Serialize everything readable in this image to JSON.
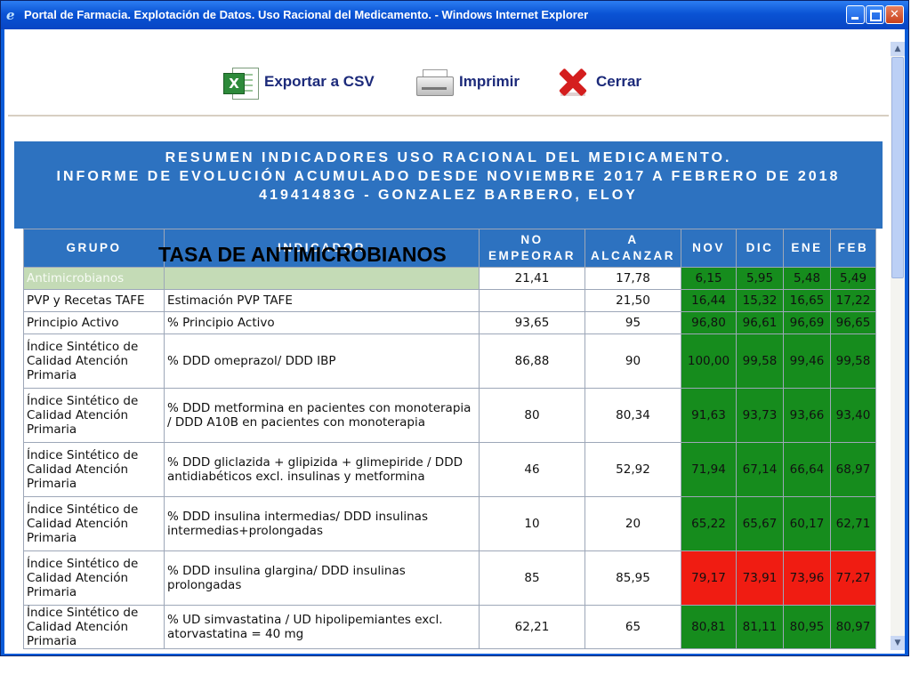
{
  "window": {
    "title": "Portal de Farmacia. Explotación de Datos. Uso Racional del Medicamento. - Windows Internet Explorer",
    "app_icon": "ie-icon"
  },
  "toolbar": {
    "export_label": "Exportar a CSV",
    "export_icon": "excel-icon",
    "print_label": "Imprimir",
    "print_icon": "printer-icon",
    "close_label": "Cerrar",
    "close_icon": "close-x-icon"
  },
  "report": {
    "line1": "RESUMEN INDICADORES USO RACIONAL DEL MEDICAMENTO.",
    "line2": "INFORME DE EVOLUCIÓN ACUMULADO DESDE NOVIEMBRE 2017 A FEBRERO DE 2018",
    "line3": "41941483G - GONZALEZ BARBERO, ELOY"
  },
  "overlay_caption": "TASA DE ANTIMICROBIANOS",
  "table": {
    "headers": {
      "grupo": "GRUPO",
      "indicador": "INDICADOR",
      "no_empeorar": "NO EMPEORAR",
      "a_alcanzar": "A ALCANZAR",
      "nov": "NOV",
      "dic": "DIC",
      "ene": "ENE",
      "feb": "FEB"
    },
    "rows": [
      {
        "grupo": "Antimicrobianos",
        "indicador": "",
        "no_empeorar": "21,41",
        "a_alcanzar": "17,78",
        "nov": "6,15",
        "dic": "5,95",
        "ene": "5,48",
        "feb": "5,49"
      },
      {
        "grupo": "PVP y Recetas TAFE",
        "indicador": "Estimación PVP TAFE",
        "no_empeorar": "",
        "a_alcanzar": "21,50",
        "nov": "16,44",
        "dic": "15,32",
        "ene": "16,65",
        "feb": "17,22"
      },
      {
        "grupo": "Principio Activo",
        "indicador": "% Principio Activo",
        "no_empeorar": "93,65",
        "a_alcanzar": "95",
        "nov": "96,80",
        "dic": "96,61",
        "ene": "96,69",
        "feb": "96,65"
      },
      {
        "grupo": "Índice Sintético de Calidad Atención Primaria",
        "indicador": "% DDD omeprazol/ DDD IBP",
        "no_empeorar": "86,88",
        "a_alcanzar": "90",
        "nov": "100,00",
        "dic": "99,58",
        "ene": "99,46",
        "feb": "99,58"
      },
      {
        "grupo": "Índice Sintético de Calidad Atención Primaria",
        "indicador": "% DDD metformina en pacientes con monoterapia / DDD A10B en pacientes con monoterapia",
        "no_empeorar": "80",
        "a_alcanzar": "80,34",
        "nov": "91,63",
        "dic": "93,73",
        "ene": "93,66",
        "feb": "93,40"
      },
      {
        "grupo": "Índice Sintético de Calidad Atención Primaria",
        "indicador": "% DDD gliclazida + glipizida + glimepiride / DDD antidiabéticos excl. insulinas y metformina",
        "no_empeorar": "46",
        "a_alcanzar": "52,92",
        "nov": "71,94",
        "dic": "67,14",
        "ene": "66,64",
        "feb": "68,97"
      },
      {
        "grupo": "Índice Sintético de Calidad Atención Primaria",
        "indicador": "% DDD insulina intermedias/ DDD insulinas intermedias+prolongadas",
        "no_empeorar": "10",
        "a_alcanzar": "20",
        "nov": "65,22",
        "dic": "65,67",
        "ene": "60,17",
        "feb": "62,71"
      },
      {
        "grupo": "Índice Sintético de Calidad Atención Primaria",
        "indicador": "% DDD insulina glargina/ DDD insulinas prolongadas",
        "no_empeorar": "85",
        "a_alcanzar": "85,95",
        "nov": "79,17",
        "dic": "73,91",
        "ene": "73,96",
        "feb": "77,27"
      },
      {
        "grupo": "Índice Sintético de Calidad Atención Primaria",
        "indicador": "% UD simvastatina / UD hipolipemiantes excl. atorvastatina = 40 mg",
        "no_empeorar": "62,21",
        "a_alcanzar": "65",
        "nov": "80,81",
        "dic": "81,11",
        "ene": "80,95",
        "feb": "80,97"
      }
    ],
    "month_colors": [
      "green",
      "green",
      "green",
      "green",
      "green",
      "green",
      "green",
      "red",
      "green"
    ]
  },
  "colors": {
    "header_blue": "#2d72c0",
    "cell_green": "#168c1d",
    "cell_red": "#f01c12",
    "text_red": "#e01a1a",
    "text_green": "#1f8a1f"
  }
}
